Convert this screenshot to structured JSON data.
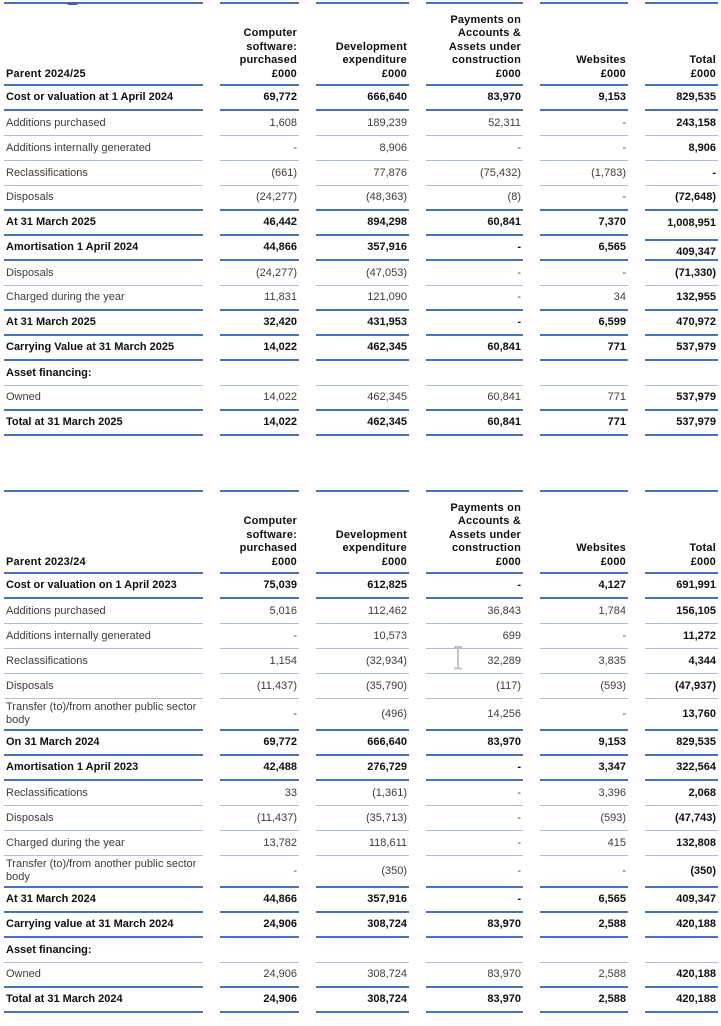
{
  "colors": {
    "border_strong": "#4472C4",
    "border_light": "#A9BFE4",
    "text": "#3c3c3c",
    "text_bold": "#0f0f0f",
    "cursor": "#c3c3c3",
    "heading_remnant": "#3a67ae"
  },
  "artifacts": {
    "text_cursor_visible": true,
    "cut_off_heading_visible": true
  },
  "tables": [
    {
      "name": "parent-2024-25",
      "header": {
        "label": "Parent 2024/25",
        "columns": [
          "Computer\nsoftware:\npurchased\n£000",
          "Development\nexpenditure\n£000",
          "Payments on\nAccounts &\nAssets under\nconstruction\n£000",
          "Websites\n£000",
          "Total\n£000"
        ]
      },
      "rows": [
        {
          "label": "Cost or valuation at 1 April 2024",
          "values": [
            "69,772",
            "666,640",
            "83,970",
            "9,153",
            "829,535"
          ],
          "bold": true,
          "border": "thick"
        },
        {
          "label": "Additions purchased",
          "values": [
            "1,608",
            "189,239",
            "52,311",
            "-",
            "243,158"
          ],
          "bold": false,
          "border": "thin"
        },
        {
          "label": "Additions internally generated",
          "values": [
            "-",
            "8,906",
            "-",
            "-",
            "8,906"
          ],
          "bold": false,
          "border": "thin"
        },
        {
          "label": "Reclassifications",
          "values": [
            "(661)",
            "77,876",
            "(75,432)",
            "(1,783)",
            "-"
          ],
          "bold": false,
          "border": "thin"
        },
        {
          "label": "Disposals",
          "values": [
            "(24,277)",
            "(48,363)",
            "(8)",
            "-",
            "(72,648)"
          ],
          "bold": false,
          "border": "thick"
        },
        {
          "label": "At 31 March 2025",
          "values": [
            "46,442",
            "894,298",
            "60,841",
            "7,370",
            "1,008,951"
          ],
          "bold": true,
          "border": "thick",
          "total_border_shift": true
        },
        {
          "label": "Amortisation 1 April 2024",
          "values": [
            "44,866",
            "357,916",
            "-",
            "6,565",
            "409,347"
          ],
          "bold": true,
          "border": "thick",
          "total_text_shift": true
        },
        {
          "label": "Disposals",
          "values": [
            "(24,277)",
            "(47,053)",
            "-",
            "-",
            "(71,330)"
          ],
          "bold": false,
          "border": "thin"
        },
        {
          "label": "Charged during the year",
          "values": [
            "11,831",
            "121,090",
            "-",
            "34",
            "132,955"
          ],
          "bold": false,
          "border": "thick"
        },
        {
          "label": "At 31 March 2025",
          "values": [
            "32,420",
            "431,953",
            "-",
            "6,599",
            "470,972"
          ],
          "bold": true,
          "border": "thick"
        },
        {
          "label": "Carrying Value at 31 March 2025",
          "values": [
            "14,022",
            "462,345",
            "60,841",
            "771",
            "537,979"
          ],
          "bold": true,
          "border": "thick"
        },
        {
          "label": "Asset financing:",
          "values": [
            "",
            "",
            "",
            "",
            ""
          ],
          "bold": true,
          "border": "thin"
        },
        {
          "label": "Owned",
          "values": [
            "14,022",
            "462,345",
            "60,841",
            "771",
            "537,979"
          ],
          "bold": false,
          "border": "thick"
        },
        {
          "label": "Total at 31 March 2025",
          "values": [
            "14,022",
            "462,345",
            "60,841",
            "771",
            "537,979"
          ],
          "bold": true,
          "border": "thick"
        }
      ]
    },
    {
      "name": "parent-2023-24",
      "header": {
        "label": "Parent 2023/24",
        "columns": [
          "Computer\nsoftware:\npurchased\n£000",
          "Development\nexpenditure\n£000",
          "Payments on\nAccounts &\nAssets under\nconstruction\n£000",
          "Websites\n£000",
          "Total\n£000"
        ]
      },
      "rows": [
        {
          "label": "Cost or valuation on 1 April 2023",
          "values": [
            "75,039",
            "612,825",
            "-",
            "4,127",
            "691,991"
          ],
          "bold": true,
          "border": "thick"
        },
        {
          "label": "Additions purchased",
          "values": [
            "5,016",
            "112,462",
            "36,843",
            "1,784",
            "156,105"
          ],
          "bold": false,
          "border": "thin"
        },
        {
          "label": "Additions internally generated",
          "values": [
            "-",
            "10,573",
            "699",
            "-",
            "11,272"
          ],
          "bold": false,
          "border": "thin"
        },
        {
          "label": "Reclassifications",
          "values": [
            "1,154",
            "(32,934)",
            "32,289",
            "3,835",
            "4,344"
          ],
          "bold": false,
          "border": "thin"
        },
        {
          "label": "Disposals",
          "values": [
            "(11,437)",
            "(35,790)",
            "(117)",
            "(593)",
            "(47,937)"
          ],
          "bold": false,
          "border": "thin"
        },
        {
          "label": "Transfer (to)/from another public sector body",
          "values": [
            "-",
            "(496)",
            "14,256",
            "-",
            "13,760"
          ],
          "bold": false,
          "border": "thick"
        },
        {
          "label": "On 31 March 2024",
          "values": [
            "69,772",
            "666,640",
            "83,970",
            "9,153",
            "829,535"
          ],
          "bold": true,
          "border": "thick"
        },
        {
          "label": "Amortisation 1 April 2023",
          "values": [
            "42,488",
            "276,729",
            "-",
            "3,347",
            "322,564"
          ],
          "bold": true,
          "border": "thick"
        },
        {
          "label": "Reclassifications",
          "values": [
            "33",
            "(1,361)",
            "-",
            "3,396",
            "2,068"
          ],
          "bold": false,
          "border": "thin"
        },
        {
          "label": "Disposals",
          "values": [
            "(11,437)",
            "(35,713)",
            "-",
            "(593)",
            "(47,743)"
          ],
          "bold": false,
          "border": "thin"
        },
        {
          "label": "Charged during the year",
          "values": [
            "13,782",
            "118,611",
            "-",
            "415",
            "132,808"
          ],
          "bold": false,
          "border": "thin"
        },
        {
          "label": "Transfer (to)/from another public sector body",
          "values": [
            "-",
            "(350)",
            "-",
            "-",
            "(350)"
          ],
          "bold": false,
          "border": "thick"
        },
        {
          "label": "At 31 March 2024",
          "values": [
            "44,866",
            "357,916",
            "-",
            "6,565",
            "409,347"
          ],
          "bold": true,
          "border": "thick"
        },
        {
          "label": "Carrying value at 31 March 2024",
          "values": [
            "24,906",
            "308,724",
            "83,970",
            "2,588",
            "420,188"
          ],
          "bold": true,
          "border": "thick"
        },
        {
          "label": "Asset financing:",
          "values": [
            "",
            "",
            "",
            "",
            ""
          ],
          "bold": true,
          "border": "thin"
        },
        {
          "label": "Owned",
          "values": [
            "24,906",
            "308,724",
            "83,970",
            "2,588",
            "420,188"
          ],
          "bold": false,
          "border": "thick"
        },
        {
          "label": "Total at 31 March 2024",
          "values": [
            "24,906",
            "308,724",
            "83,970",
            "2,588",
            "420,188"
          ],
          "bold": true,
          "border": "thick"
        }
      ]
    }
  ]
}
